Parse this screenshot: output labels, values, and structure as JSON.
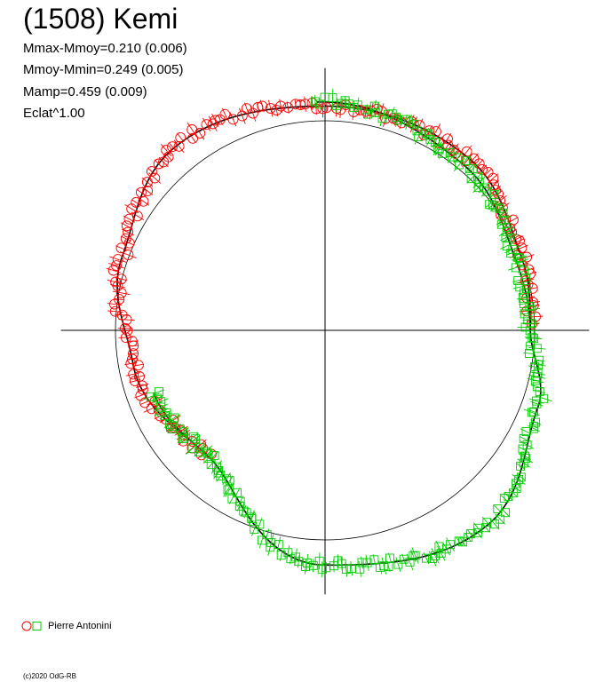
{
  "chart_data": {
    "type": "scatter",
    "subtype": "polar-lightcurve",
    "title": "(1508) Kemi",
    "stats": [
      "Mmax-Mmoy=0.210 (0.006)",
      "Mmoy-Mmin=0.249 (0.005)",
      "Mamp=0.459 (0.009)",
      "Eclat^1.00"
    ],
    "reference_circle_radius": 1.0,
    "axis_range": [
      -1.26,
      1.26
    ],
    "legend": {
      "label": "Pierre Antonini",
      "placement": "bottom-left"
    },
    "series": [
      {
        "marker": "circle",
        "color": "#ff0000",
        "angle_start_deg": 2,
        "angle_end_deg": 227,
        "angle_step_deg": 1.5,
        "radius_profile": [
          {
            "angle_deg": 0,
            "r": 0.98
          },
          {
            "angle_deg": 20,
            "r": 1.0
          },
          {
            "angle_deg": 50,
            "r": 1.07
          },
          {
            "angle_deg": 90,
            "r": 1.07
          },
          {
            "angle_deg": 130,
            "r": 1.13
          },
          {
            "angle_deg": 160,
            "r": 1.03
          },
          {
            "angle_deg": 190,
            "r": 0.93
          },
          {
            "angle_deg": 227,
            "r": 0.82
          }
        ]
      },
      {
        "marker": "square",
        "color": "#00cc00",
        "angle_start_deg": 200,
        "angle_end_deg": 452,
        "angle_step_deg": 1.2,
        "radius_profile": [
          {
            "angle_deg": 200,
            "r": 0.87
          },
          {
            "angle_deg": 227,
            "r": 0.82
          },
          {
            "angle_deg": 270,
            "r": 1.12
          },
          {
            "angle_deg": 310,
            "r": 1.21
          },
          {
            "angle_deg": 340,
            "r": 1.08
          },
          {
            "angle_deg": 360,
            "r": 0.98
          },
          {
            "angle_deg": 380,
            "r": 0.97
          },
          {
            "angle_deg": 410,
            "r": 1.03
          },
          {
            "angle_deg": 452,
            "r": 1.09
          }
        ]
      }
    ]
  },
  "credit": "(c)2020 OdG-RB"
}
